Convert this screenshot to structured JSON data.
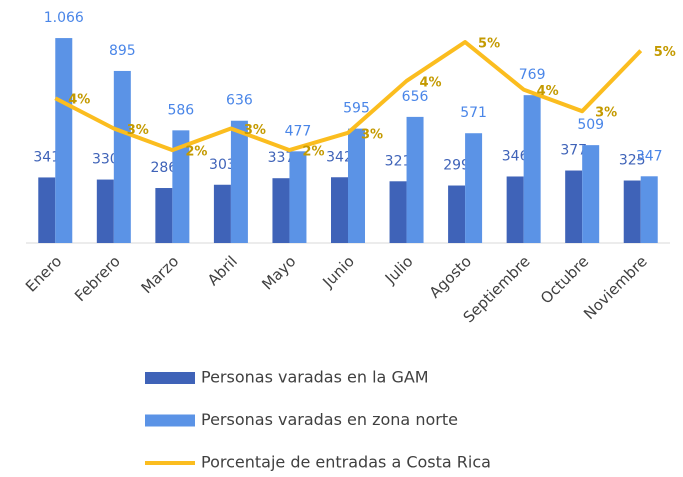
{
  "chart_data": {
    "type": "bar-line",
    "categories": [
      "Enero",
      "Febrero",
      "Marzo",
      "Abril",
      "Mayo",
      "Junio",
      "Julio",
      "Agosto",
      "Septiembre",
      "Octubre",
      "Noviembre"
    ],
    "ylim": [
      0,
      1160
    ],
    "y2lim": [
      0.25,
      5.41
    ],
    "series": [
      {
        "name": "Personas varadas en la GAM",
        "color": "#3f63b8",
        "label_color": "#3f63b8",
        "type": "bar",
        "values": [
          341,
          330,
          286,
          303,
          337,
          342,
          321,
          299,
          346,
          377,
          325
        ]
      },
      {
        "name": "Personas varadas en zona norte",
        "color": "#5b93e6",
        "label_color": "#4a86e8",
        "type": "bar",
        "values": [
          1066,
          895,
          586,
          636,
          477,
          595,
          656,
          571,
          769,
          509,
          347
        ],
        "value_labels": [
          "1.066",
          "895",
          "586",
          "636",
          "477",
          "595",
          "656",
          "571",
          "769",
          "509",
          "347"
        ]
      },
      {
        "name": "Porcentaje de entradas a Costa Rica",
        "color": "#fbbd1f",
        "label_color": "#c49a00",
        "type": "line",
        "axis": "y2",
        "values": [
          3.6,
          2.9,
          2.4,
          2.9,
          2.4,
          2.8,
          4.0,
          4.9,
          3.8,
          3.3,
          4.7
        ],
        "value_labels": [
          "4%",
          "3%",
          "2%",
          "3%",
          "2%",
          "3%",
          "4%",
          "5%",
          "4%",
          "3%",
          "5%"
        ]
      }
    ]
  }
}
